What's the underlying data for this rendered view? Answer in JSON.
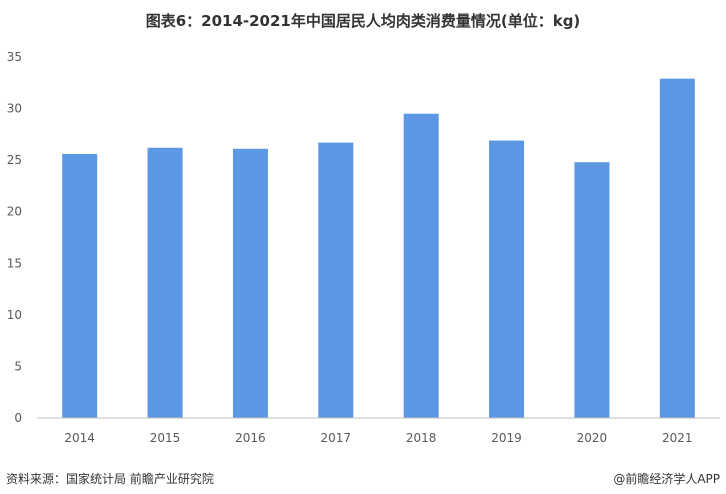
{
  "title": "图表6：2014-2021年中国居民人均肉类消费量情况(单位：kg)",
  "footer": {
    "source": "资料来源：国家统计局 前瞻产业研究院",
    "brand": "@前瞻经济学人APP"
  },
  "chart_data": {
    "type": "bar",
    "categories": [
      "2014",
      "2015",
      "2016",
      "2017",
      "2018",
      "2019",
      "2020",
      "2021"
    ],
    "values": [
      25.6,
      26.2,
      26.1,
      26.7,
      29.5,
      26.9,
      24.8,
      32.9
    ],
    "yticks": [
      "0",
      "5",
      "10",
      "15",
      "20",
      "25",
      "30",
      "35"
    ],
    "ylim": [
      0,
      35
    ],
    "bar_color": "#5b97e3",
    "grid": false
  }
}
